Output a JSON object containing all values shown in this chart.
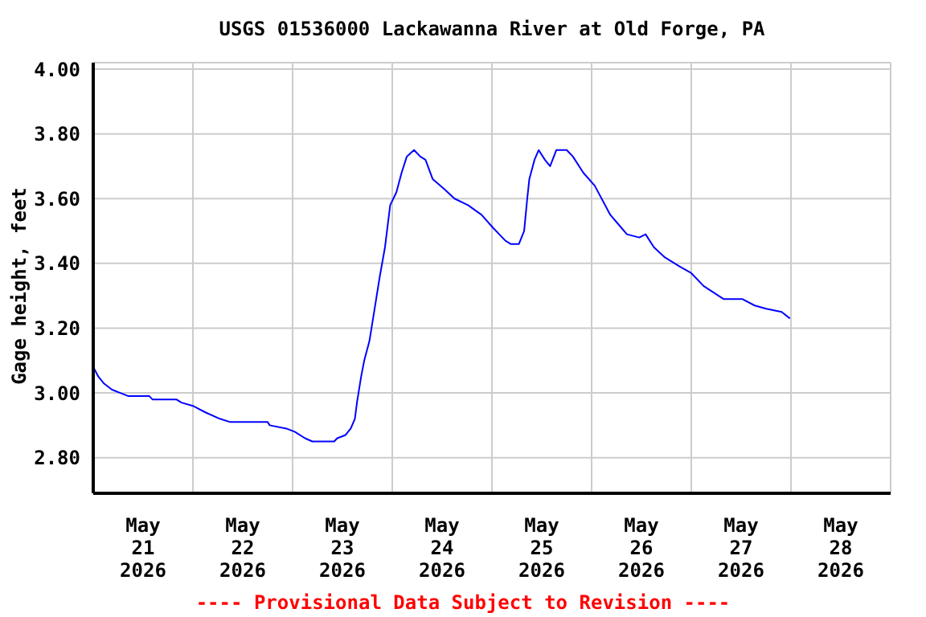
{
  "chart_data": {
    "type": "line",
    "title": "USGS 01536000 Lackawanna River at Old Forge, PA",
    "ylabel": "Gage height, feet",
    "annotations": [
      "---- Provisional Data Subject to Revision ----"
    ],
    "x": [
      "2026-05-21T00:00",
      "2026-05-21T01:15",
      "2026-05-21T02:30",
      "2026-05-21T04:30",
      "2026-05-21T06:30",
      "2026-05-21T08:30",
      "2026-05-21T13:30",
      "2026-05-21T14:15",
      "2026-05-21T20:00",
      "2026-05-21T21:15",
      "2026-05-22T00:00",
      "2026-05-22T03:00",
      "2026-05-22T06:30",
      "2026-05-22T09:00",
      "2026-05-22T18:00",
      "2026-05-22T18:30",
      "2026-05-22T22:30",
      "2026-05-23T00:30",
      "2026-05-23T03:00",
      "2026-05-23T04:45",
      "2026-05-23T10:00",
      "2026-05-23T10:45",
      "2026-05-23T12:45",
      "2026-05-23T14:00",
      "2026-05-23T15:00",
      "2026-05-23T15:30",
      "2026-05-23T16:30",
      "2026-05-23T17:15",
      "2026-05-23T18:30",
      "2026-05-23T19:45",
      "2026-05-23T21:00",
      "2026-05-23T22:15",
      "2026-05-23T23:30",
      "2026-05-24T01:00",
      "2026-05-24T02:15",
      "2026-05-24T03:30",
      "2026-05-24T05:15",
      "2026-05-24T06:45",
      "2026-05-24T08:00",
      "2026-05-24T09:45",
      "2026-05-24T12:30",
      "2026-05-24T15:00",
      "2026-05-24T18:15",
      "2026-05-24T21:30",
      "2026-05-25T00:15",
      "2026-05-25T03:15",
      "2026-05-25T04:30",
      "2026-05-25T06:30",
      "2026-05-25T07:45",
      "2026-05-25T08:30",
      "2026-05-25T09:00",
      "2026-05-25T10:15",
      "2026-05-25T11:15",
      "2026-05-25T12:45",
      "2026-05-25T14:00",
      "2026-05-25T15:30",
      "2026-05-25T18:00",
      "2026-05-25T19:30",
      "2026-05-25T22:00",
      "2026-05-26T00:45",
      "2026-05-26T04:30",
      "2026-05-26T06:30",
      "2026-05-26T08:30",
      "2026-05-26T11:30",
      "2026-05-26T13:00",
      "2026-05-26T15:00",
      "2026-05-26T17:30",
      "2026-05-26T21:15",
      "2026-05-27T00:00",
      "2026-05-27T03:00",
      "2026-05-27T07:45",
      "2026-05-27T12:15",
      "2026-05-27T15:15",
      "2026-05-27T18:00",
      "2026-05-27T21:45",
      "2026-05-27T23:45"
    ],
    "series": [
      {
        "color": "#0000ff",
        "values": [
          3.08,
          3.05,
          3.03,
          3.01,
          3.0,
          2.99,
          2.99,
          2.98,
          2.98,
          2.97,
          2.96,
          2.94,
          2.92,
          2.91,
          2.91,
          2.9,
          2.89,
          2.88,
          2.86,
          2.85,
          2.85,
          2.86,
          2.87,
          2.89,
          2.92,
          2.97,
          3.05,
          3.1,
          3.16,
          3.26,
          3.36,
          3.45,
          3.58,
          3.62,
          3.68,
          3.73,
          3.75,
          3.73,
          3.72,
          3.66,
          3.63,
          3.6,
          3.58,
          3.55,
          3.51,
          3.47,
          3.46,
          3.46,
          3.5,
          3.6,
          3.66,
          3.72,
          3.75,
          3.72,
          3.7,
          3.75,
          3.75,
          3.73,
          3.68,
          3.64,
          3.55,
          3.52,
          3.49,
          3.48,
          3.49,
          3.45,
          3.42,
          3.39,
          3.37,
          3.33,
          3.29,
          3.29,
          3.27,
          3.26,
          3.25,
          3.23
        ]
      }
    ],
    "xlim": [
      "2026-05-21T00:00",
      "2026-05-29T00:00"
    ],
    "xticks": [
      {
        "value": "2026-05-21T00:00",
        "label": null
      },
      {
        "value": "2026-05-21T12:00",
        "label": "May\n21\n2026"
      },
      {
        "value": "2026-05-22T00:00",
        "label": null
      },
      {
        "value": "2026-05-22T12:00",
        "label": "May\n22\n2026"
      },
      {
        "value": "2026-05-23T00:00",
        "label": null
      },
      {
        "value": "2026-05-23T12:00",
        "label": "May\n23\n2026"
      },
      {
        "value": "2026-05-24T00:00",
        "label": null
      },
      {
        "value": "2026-05-24T12:00",
        "label": "May\n24\n2026"
      },
      {
        "value": "2026-05-25T00:00",
        "label": null
      },
      {
        "value": "2026-05-25T12:00",
        "label": "May\n25\n2026"
      },
      {
        "value": "2026-05-26T00:00",
        "label": null
      },
      {
        "value": "2026-05-26T12:00",
        "label": "May\n26\n2026"
      },
      {
        "value": "2026-05-27T00:00",
        "label": null
      },
      {
        "value": "2026-05-27T12:00",
        "label": "May\n27\n2026"
      },
      {
        "value": "2026-05-28T00:00",
        "label": null
      },
      {
        "value": "2026-05-28T12:00",
        "label": "May\n28\n2026"
      },
      {
        "value": "2026-05-29T00:00",
        "label": null
      }
    ],
    "ylim": [
      2.69,
      4.02
    ],
    "yticks": [
      {
        "value": 2.8,
        "label": "2.80"
      },
      {
        "value": 3.0,
        "label": "3.00"
      },
      {
        "value": 3.2,
        "label": "3.20"
      },
      {
        "value": 3.4,
        "label": "3.40"
      },
      {
        "value": 3.6,
        "label": "3.60"
      },
      {
        "value": 3.8,
        "label": "3.80"
      },
      {
        "value": 4.0,
        "label": "4.00"
      }
    ],
    "grid": true,
    "legend": false,
    "marker": "none",
    "line_style": "solid"
  }
}
